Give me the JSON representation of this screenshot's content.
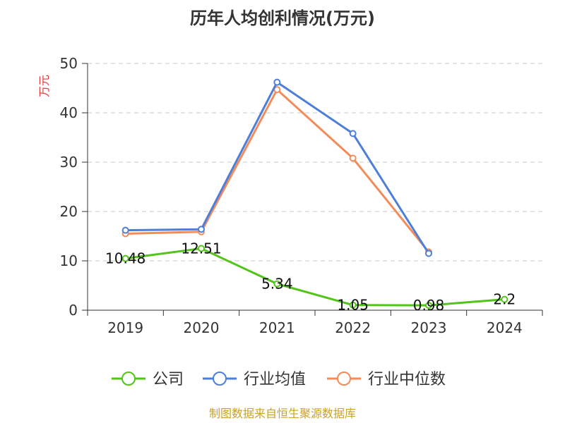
{
  "chart_data": {
    "type": "line",
    "title": "历年人均创利情况(万元)",
    "ylabel": "万元",
    "categories": [
      "2019",
      "2020",
      "2021",
      "2022",
      "2023",
      "2024"
    ],
    "ylim": [
      0,
      50
    ],
    "yticks": [
      "0",
      "10",
      "20",
      "30",
      "40",
      "50"
    ],
    "grid": true,
    "legend_position": "bottom",
    "series": [
      {
        "name": "公司",
        "color": "#52c41a",
        "values": [
          10.48,
          12.51,
          5.34,
          1.05,
          0.98,
          2.2
        ],
        "labels": [
          "10.48",
          "12.51",
          "5.34",
          "1.05",
          "0.98",
          "2.2"
        ]
      },
      {
        "name": "行业均值",
        "color": "#4e7fd8",
        "values": [
          16.2,
          16.4,
          46.2,
          35.8,
          11.5,
          null
        ]
      },
      {
        "name": "行业中位数",
        "color": "#f28c5a",
        "values": [
          15.5,
          15.9,
          44.7,
          30.8,
          11.8,
          null
        ]
      }
    ]
  },
  "source": "制图数据来自恒生聚源数据库"
}
